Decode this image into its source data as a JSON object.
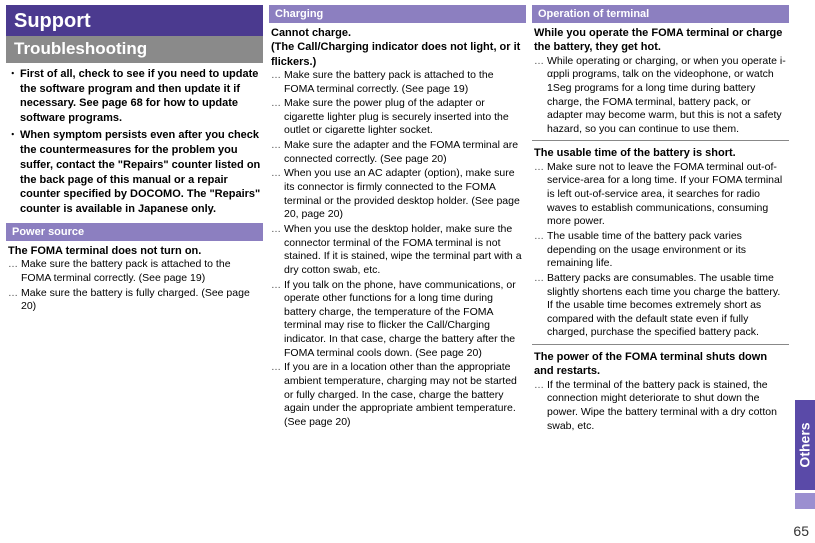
{
  "titles": {
    "support": "Support",
    "troubleshooting": "Troubleshooting"
  },
  "intro": {
    "b1": "First of all, check to see if you need to update the software program and then update it if necessary. See page 68 for how to update software programs.",
    "b2": "When symptom persists even after you check the countermeasures for the problem you suffer, contact the \"Repairs\" counter listed on the back page of this manual or a repair counter specified by DOCOMO. The \"Repairs\" counter is available in Japanese only."
  },
  "power": {
    "hdr": "Power source",
    "symptom": "The FOMA terminal does not turn on.",
    "i1": "Make sure the battery pack is attached to the FOMA terminal correctly. (See page 19)",
    "i2": "Make sure the battery is fully charged. (See page 20)"
  },
  "charging": {
    "hdr": "Charging",
    "symptom": "Cannot charge.\n(The Call/Charging indicator does not light, or it flickers.)",
    "i1": "Make sure the battery pack is attached to the FOMA terminal correctly. (See page 19)",
    "i2": "Make sure the power plug of the adapter or cigarette lighter plug is securely inserted into the outlet or cigarette lighter socket.",
    "i3": "Make sure the adapter and the FOMA terminal are connected correctly. (See page 20)",
    "i4": "When you use an AC adapter (option), make sure its connector is firmly connected to the FOMA terminal or the provided desktop holder. (See page 20, page 20)",
    "i5": "When you use the desktop holder, make sure the connector terminal of the FOMA terminal is not stained. If it is stained, wipe the terminal part with a dry cotton swab, etc.",
    "i6": "If you talk on the phone, have communications, or operate other functions for a long time during battery charge, the temperature of the FOMA terminal may rise to flicker the Call/Charging indicator. In that case, charge the battery after the FOMA terminal cools down. (See page 20)",
    "i7": "If you are in a location other than the appropriate ambient temperature, charging may not be started or fully charged. In the case, charge the battery again under the appropriate ambient temperature. (See page 20)"
  },
  "operation": {
    "hdr": "Operation of terminal",
    "s1": "While you operate the FOMA terminal or charge the battery, they get hot.",
    "s1i1": "While operating or charging, or when you operate i-αppli programs, talk on the videophone, or watch 1Seg programs for a long time during battery charge, the FOMA terminal, battery pack, or adapter may become warm, but this is not a safety hazard, so you can continue to use them.",
    "s2": "The usable time of the battery is short.",
    "s2i1": "Make sure not to leave the FOMA terminal out-of-service-area for a long time. If your FOMA terminal is left out-of-service area, it searches for radio waves to establish communications, consuming more power.",
    "s2i2": "The usable time of the battery pack varies depending on the usage environment or its remaining life.",
    "s2i3": "Battery packs are consumables. The usable time slightly shortens each time you charge the battery. If the usable time becomes extremely short as compared with the default state even if fully charged, purchase the specified battery pack.",
    "s3": "The power of the FOMA terminal shuts down and restarts.",
    "s3i1": "If the terminal of the battery pack is stained, the connection might deteriorate to shut down the power. Wipe the battery terminal with a dry cotton swab, etc."
  },
  "sideTab": "Others",
  "pageNum": "65"
}
